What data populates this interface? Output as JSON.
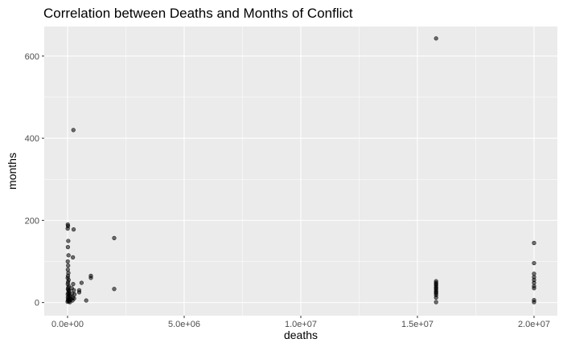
{
  "chart_data": {
    "type": "scatter",
    "title": "Correlation between Deaths and Months of Conflict",
    "xlabel": "deaths",
    "ylabel": "months",
    "xlim": [
      -1000000,
      21000000
    ],
    "ylim": [
      -32,
      672
    ],
    "x_ticks": [
      0,
      5000000,
      10000000,
      15000000,
      20000000
    ],
    "x_tick_labels": [
      "0.0e+00",
      "5.0e+06",
      "1.0e+07",
      "1.5e+07",
      "2.0e+07"
    ],
    "y_ticks": [
      0,
      200,
      400,
      600
    ],
    "y_tick_labels": [
      "0",
      "200",
      "400",
      "600"
    ],
    "grid": true,
    "legend": "none",
    "point_color": "#000000",
    "panel_color": "#ebebeb",
    "points": [
      {
        "x": 10000,
        "y": 190
      },
      {
        "x": 20000,
        "y": 186
      },
      {
        "x": 5000,
        "y": 180
      },
      {
        "x": 30000,
        "y": 150
      },
      {
        "x": 15000,
        "y": 135
      },
      {
        "x": 40000,
        "y": 115
      },
      {
        "x": 8000,
        "y": 100
      },
      {
        "x": 25000,
        "y": 90
      },
      {
        "x": 12000,
        "y": 80
      },
      {
        "x": 35000,
        "y": 72
      },
      {
        "x": 18000,
        "y": 65
      },
      {
        "x": 6000,
        "y": 60
      },
      {
        "x": 45000,
        "y": 55
      },
      {
        "x": 22000,
        "y": 50
      },
      {
        "x": 9000,
        "y": 45
      },
      {
        "x": 50000,
        "y": 40
      },
      {
        "x": 28000,
        "y": 36
      },
      {
        "x": 14000,
        "y": 32
      },
      {
        "x": 60000,
        "y": 28
      },
      {
        "x": 32000,
        "y": 24
      },
      {
        "x": 7000,
        "y": 20
      },
      {
        "x": 70000,
        "y": 18
      },
      {
        "x": 38000,
        "y": 15
      },
      {
        "x": 11000,
        "y": 12
      },
      {
        "x": 80000,
        "y": 10
      },
      {
        "x": 42000,
        "y": 8
      },
      {
        "x": 16000,
        "y": 6
      },
      {
        "x": 90000,
        "y": 5
      },
      {
        "x": 48000,
        "y": 3
      },
      {
        "x": 3000,
        "y": 2
      },
      {
        "x": 100000,
        "y": 1
      },
      {
        "x": 55000,
        "y": 30
      },
      {
        "x": 65000,
        "y": 22
      },
      {
        "x": 120000,
        "y": 15
      },
      {
        "x": 150000,
        "y": 8
      },
      {
        "x": 200000,
        "y": 22
      },
      {
        "x": 220000,
        "y": 12
      },
      {
        "x": 180000,
        "y": 35
      },
      {
        "x": 250000,
        "y": 420
      },
      {
        "x": 260000,
        "y": 178
      },
      {
        "x": 230000,
        "y": 110
      },
      {
        "x": 240000,
        "y": 45
      },
      {
        "x": 270000,
        "y": 30
      },
      {
        "x": 280000,
        "y": 10
      },
      {
        "x": 300000,
        "y": 20
      },
      {
        "x": 210000,
        "y": 5
      },
      {
        "x": 500000,
        "y": 30
      },
      {
        "x": 500000,
        "y": 25
      },
      {
        "x": 600000,
        "y": 48
      },
      {
        "x": 800000,
        "y": 5
      },
      {
        "x": 1000000,
        "y": 65
      },
      {
        "x": 1000000,
        "y": 60
      },
      {
        "x": 2000000,
        "y": 157
      },
      {
        "x": 2000000,
        "y": 33
      },
      {
        "x": 15800000,
        "y": 643
      },
      {
        "x": 15800000,
        "y": 52
      },
      {
        "x": 15800000,
        "y": 48
      },
      {
        "x": 15800000,
        "y": 45
      },
      {
        "x": 15800000,
        "y": 42
      },
      {
        "x": 15800000,
        "y": 38
      },
      {
        "x": 15800000,
        "y": 35
      },
      {
        "x": 15800000,
        "y": 32
      },
      {
        "x": 15800000,
        "y": 28
      },
      {
        "x": 15800000,
        "y": 25
      },
      {
        "x": 15800000,
        "y": 22
      },
      {
        "x": 15800000,
        "y": 18
      },
      {
        "x": 15800000,
        "y": 12
      },
      {
        "x": 15800000,
        "y": 1
      },
      {
        "x": 20000000,
        "y": 145
      },
      {
        "x": 20000000,
        "y": 96
      },
      {
        "x": 20000000,
        "y": 70
      },
      {
        "x": 20000000,
        "y": 62
      },
      {
        "x": 20000000,
        "y": 55
      },
      {
        "x": 20000000,
        "y": 48
      },
      {
        "x": 20000000,
        "y": 40
      },
      {
        "x": 20000000,
        "y": 35
      },
      {
        "x": 20000000,
        "y": 6
      },
      {
        "x": 20000000,
        "y": 1
      }
    ]
  }
}
